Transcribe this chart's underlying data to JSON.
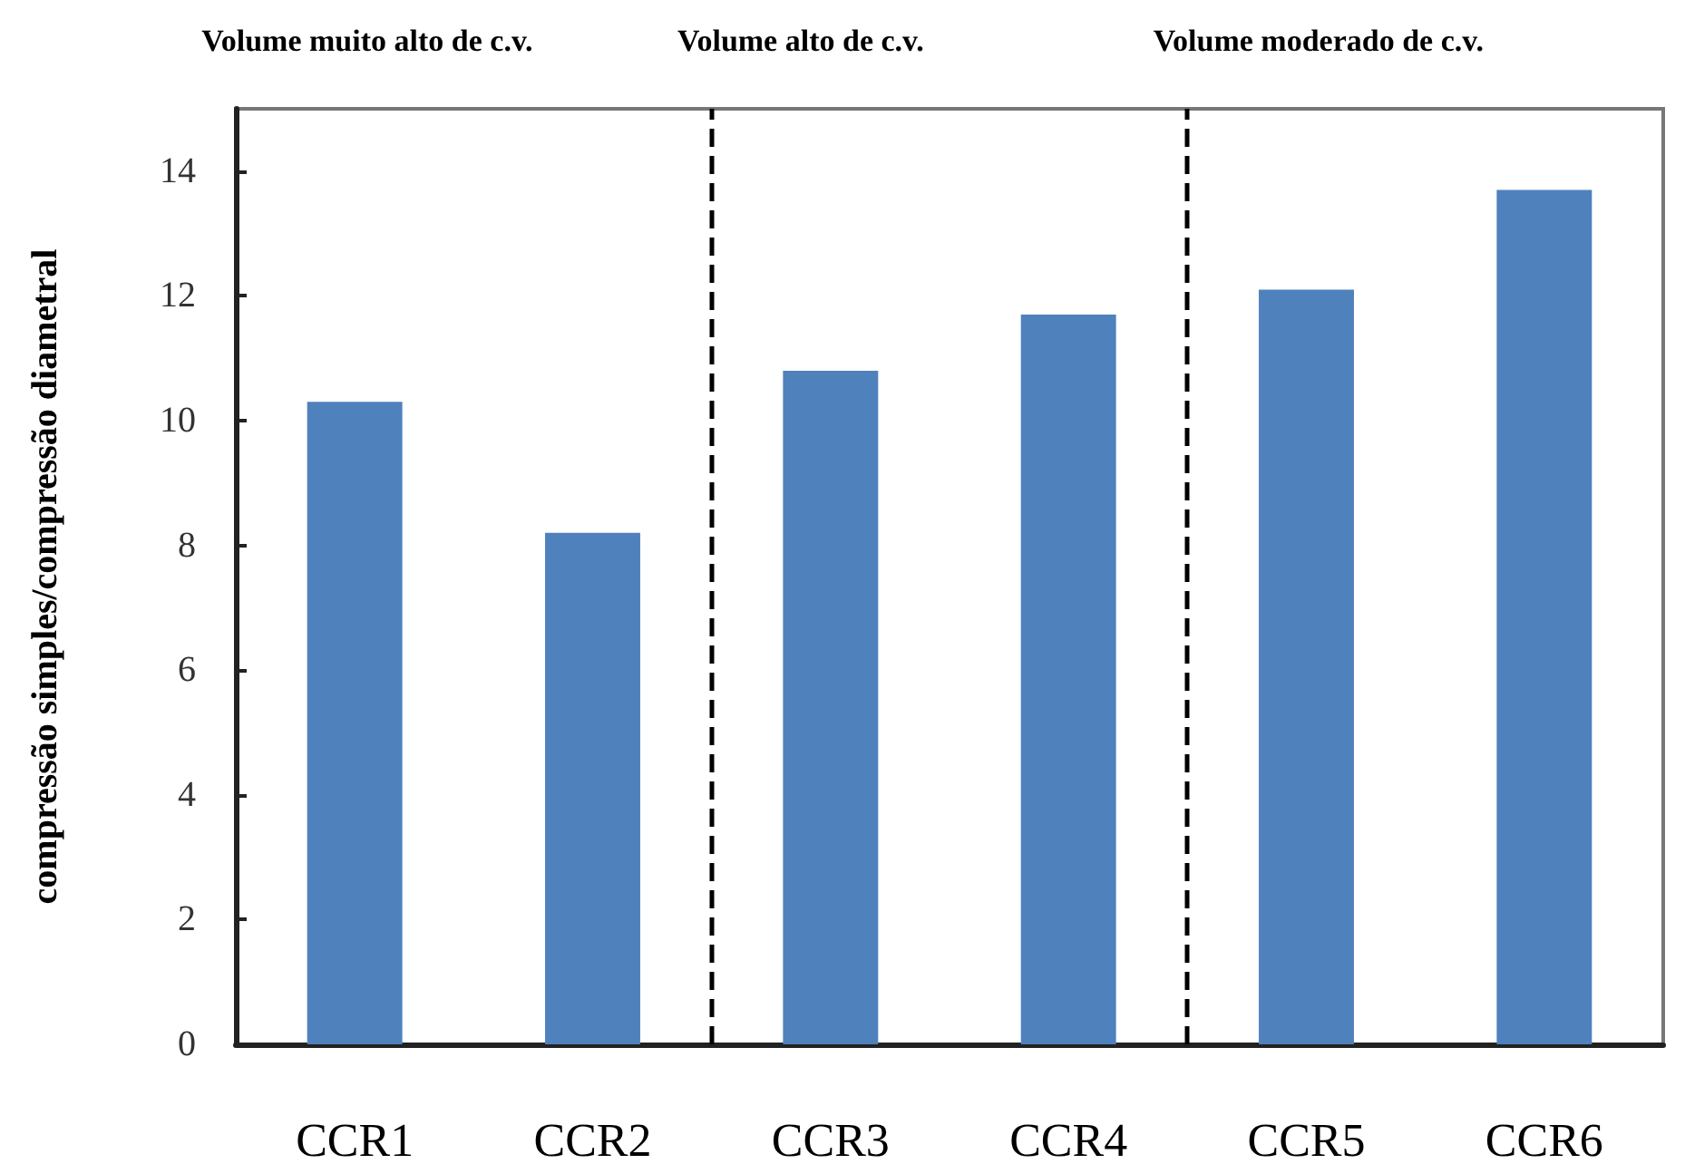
{
  "chart_data": {
    "type": "bar",
    "ylabel": "compressão simples/compressão diametral",
    "categories": [
      "CCR1",
      "CCR2",
      "CCR3",
      "CCR4",
      "CCR5",
      "CCR6"
    ],
    "values": [
      10.3,
      8.2,
      10.8,
      11.7,
      12.1,
      13.7
    ],
    "color": "#4f81bd",
    "ylim": [
      0,
      15
    ],
    "yticks": [
      0,
      2,
      4,
      6,
      8,
      10,
      12,
      14
    ],
    "annotations": [
      "Volume muito alto de c.v.",
      "Volume alto de c.v.",
      "Volume moderado de c.v."
    ]
  }
}
